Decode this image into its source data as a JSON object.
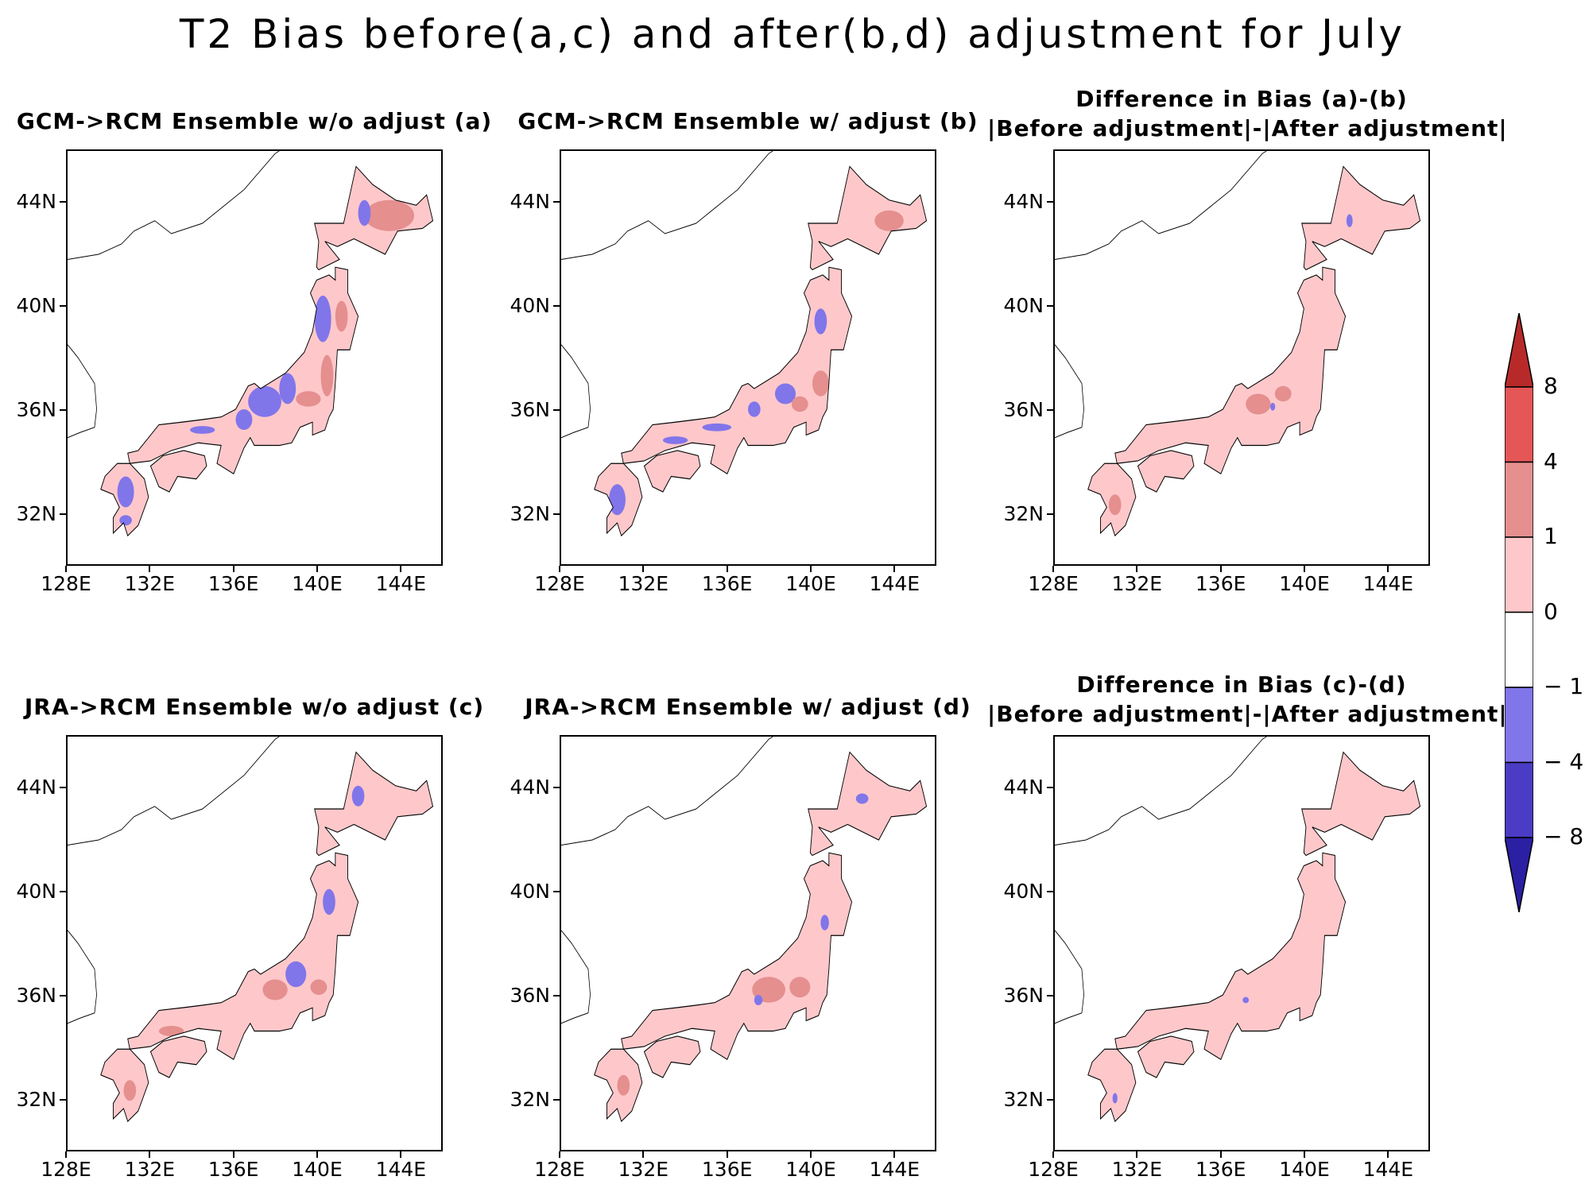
{
  "title": "T2 Bias before(a,c) and after(b,d) adjustment for July",
  "chart_data": {
    "type": "heatmap",
    "title": "T2 Bias before(a,c) and after(b,d) adjustment for July",
    "panels": [
      {
        "id": "a",
        "title_lines": [
          "GCM->RCM Ensemble w/o adjust (a)"
        ]
      },
      {
        "id": "b",
        "title_lines": [
          "GCM->RCM Ensemble w/ adjust (b)"
        ]
      },
      {
        "id": "ab",
        "title_lines": [
          "Difference in Bias (a)-(b)",
          "|Before adjustment|-|After adjustment|"
        ]
      },
      {
        "id": "c",
        "title_lines": [
          "JRA->RCM Ensemble w/o adjust (c)"
        ]
      },
      {
        "id": "d",
        "title_lines": [
          "JRA->RCM Ensemble w/ adjust (d)"
        ]
      },
      {
        "id": "cd",
        "title_lines": [
          "Difference in Bias (c)-(d)",
          "|Before adjustment|-|After adjustment|"
        ]
      }
    ],
    "lon_range": [
      128,
      146
    ],
    "lat_range": [
      30,
      46
    ],
    "x_ticks": [
      "128E",
      "132E",
      "136E",
      "140E",
      "144E"
    ],
    "x_tick_values": [
      128,
      132,
      136,
      140,
      144
    ],
    "y_ticks": [
      "44N",
      "40N",
      "36N",
      "32N"
    ],
    "y_tick_values": [
      44,
      40,
      36,
      32
    ],
    "colorbar": {
      "levels": [
        "-8",
        "-4",
        "-1",
        "0",
        "1",
        "4",
        "8"
      ],
      "colors": [
        "#2b1fa3",
        "#4a3cc4",
        "#8175ea",
        "#ffffff",
        "#fec8ca",
        "#e58f8f",
        "#e55656",
        "#b82a2a"
      ]
    }
  }
}
